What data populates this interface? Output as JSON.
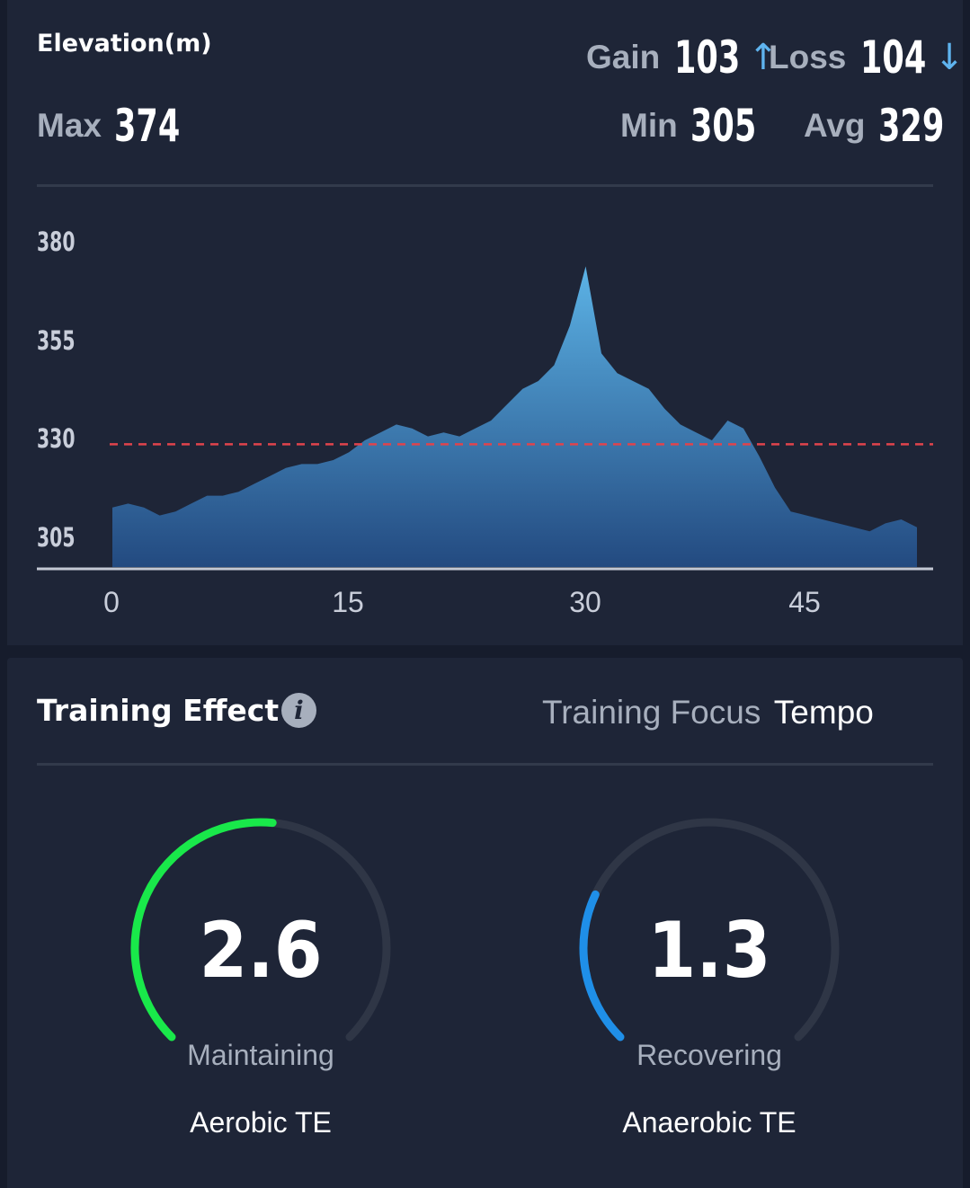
{
  "elevation": {
    "title": "Elevation(m)",
    "gain_label": "Gain",
    "gain_value": "103",
    "gain_arrow": "↑",
    "loss_label": "Loss",
    "loss_value": "104",
    "loss_arrow": "↓",
    "max_label": "Max",
    "max_value": "374",
    "min_label": "Min",
    "min_value": "305",
    "avg_label": "Avg",
    "avg_value": "329"
  },
  "chart_data": {
    "type": "area",
    "x": [
      0,
      1,
      2,
      3,
      4,
      5,
      6,
      7,
      8,
      9,
      10,
      11,
      12,
      13,
      14,
      15,
      16,
      17,
      18,
      19,
      20,
      21,
      22,
      23,
      24,
      25,
      26,
      27,
      28,
      29,
      30,
      31,
      32,
      33,
      34,
      35,
      36,
      37,
      38,
      39,
      40,
      41,
      42,
      43,
      44,
      45,
      46,
      47,
      48,
      49,
      50,
      51
    ],
    "values": [
      313,
      314,
      313,
      311,
      312,
      314,
      316,
      316,
      317,
      319,
      321,
      323,
      324,
      324,
      325,
      327,
      330,
      332,
      334,
      333,
      331,
      332,
      331,
      333,
      335,
      339,
      343,
      345,
      349,
      359,
      374,
      352,
      347,
      345,
      343,
      338,
      334,
      332,
      330,
      335,
      333,
      326,
      318,
      312,
      311,
      310,
      309,
      308,
      307,
      309,
      310,
      308
    ],
    "yticks": [
      "380",
      "355",
      "330",
      "305"
    ],
    "xticks": [
      "0",
      "15",
      "30",
      "45"
    ],
    "ylim": [
      302,
      382
    ],
    "xlim": [
      0,
      51
    ],
    "avg_line": 329,
    "grid": false,
    "colors": {
      "area_top": "#5cb3e6",
      "area_bottom": "#234a80",
      "avg_line": "#e0434c"
    }
  },
  "training": {
    "title": "Training Effect",
    "info_icon": "info-icon",
    "focus_label": "Training Focus",
    "focus_value": "Tempo",
    "aerobic": {
      "value": "2.6",
      "level": 2.6,
      "max": 5,
      "state": "Maintaining",
      "name": "Aerobic TE",
      "color": "#19e84a"
    },
    "anaerobic": {
      "value": "1.3",
      "level": 1.3,
      "max": 5,
      "state": "Recovering",
      "name": "Anaerobic TE",
      "color": "#1f8fe8"
    }
  }
}
